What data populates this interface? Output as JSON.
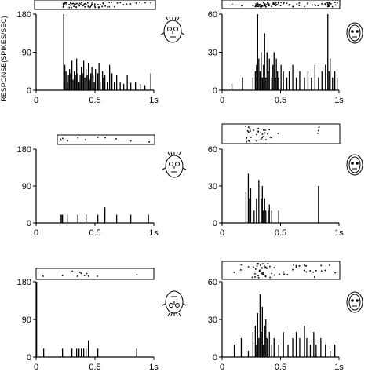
{
  "figure": {
    "ylabel": "RESPONSE(SPIKES/SEC)"
  },
  "chart_data": [
    {
      "type": "bar",
      "panel": "left-top",
      "face_icon": "face-front-sketch-icon",
      "ylim": [
        0,
        180
      ],
      "yticks": [
        "180",
        "90",
        "0"
      ],
      "ytick_values": [
        180,
        90,
        0
      ],
      "xlim": [
        0,
        1
      ],
      "xticks": [
        "0",
        "0.5",
        "1s"
      ],
      "xtick_values": [
        0,
        0.5,
        1
      ],
      "bin_width": 0.01,
      "x": [
        0.23,
        0.24,
        0.25,
        0.26,
        0.27,
        0.28,
        0.29,
        0.3,
        0.31,
        0.32,
        0.33,
        0.34,
        0.35,
        0.36,
        0.37,
        0.38,
        0.39,
        0.4,
        0.41,
        0.42,
        0.43,
        0.44,
        0.45,
        0.46,
        0.47,
        0.48,
        0.49,
        0.5,
        0.52,
        0.53,
        0.54,
        0.56,
        0.57,
        0.58,
        0.6,
        0.62,
        0.64,
        0.66,
        0.68,
        0.71,
        0.74,
        0.77,
        0.8,
        0.84,
        0.88,
        0.92,
        0.97
      ],
      "values": [
        180,
        60,
        45,
        20,
        35,
        50,
        40,
        70,
        25,
        45,
        35,
        75,
        40,
        20,
        35,
        55,
        40,
        70,
        30,
        50,
        35,
        65,
        25,
        40,
        55,
        35,
        20,
        50,
        40,
        65,
        20,
        45,
        30,
        35,
        20,
        60,
        40,
        20,
        35,
        20,
        15,
        35,
        18,
        20,
        15,
        12,
        40
      ]
    },
    {
      "type": "bar",
      "panel": "right-top",
      "face_icon": "face-scrambled-oval-icon",
      "ylim": [
        0,
        60
      ],
      "yticks": [
        "60",
        "30",
        "0"
      ],
      "ytick_values": [
        60,
        30,
        0
      ],
      "xlim": [
        0,
        1
      ],
      "xticks": [
        "0",
        "0.5",
        "1s"
      ],
      "xtick_values": [
        0,
        0.5,
        1
      ],
      "bin_width": 0.01,
      "x": [
        0.08,
        0.17,
        0.26,
        0.28,
        0.29,
        0.3,
        0.31,
        0.32,
        0.33,
        0.34,
        0.35,
        0.36,
        0.37,
        0.38,
        0.39,
        0.4,
        0.42,
        0.43,
        0.44,
        0.45,
        0.46,
        0.47,
        0.48,
        0.5,
        0.52,
        0.55,
        0.57,
        0.6,
        0.63,
        0.66,
        0.7,
        0.73,
        0.76,
        0.79,
        0.82,
        0.85,
        0.88,
        0.9,
        0.91,
        0.92,
        0.94,
        0.96,
        0.98
      ],
      "values": [
        5,
        10,
        10,
        15,
        20,
        60,
        25,
        15,
        30,
        10,
        20,
        45,
        10,
        30,
        15,
        25,
        10,
        20,
        30,
        10,
        25,
        15,
        10,
        20,
        15,
        10,
        15,
        20,
        10,
        15,
        10,
        15,
        10,
        20,
        10,
        15,
        20,
        60,
        15,
        25,
        10,
        15,
        10
      ]
    },
    {
      "type": "bar",
      "panel": "left-middle",
      "face_icon": "face-realistic-front-icon",
      "ylim": [
        0,
        180
      ],
      "yticks": [
        "180",
        "90",
        "0"
      ],
      "ytick_values": [
        180,
        90,
        0
      ],
      "xlim": [
        0,
        1
      ],
      "xticks": [
        "0",
        "0.5",
        "1s"
      ],
      "xtick_values": [
        0,
        0.5,
        1
      ],
      "bin_width": 0.01,
      "x": [
        0.2,
        0.21,
        0.22,
        0.26,
        0.35,
        0.42,
        0.52,
        0.58,
        0.68,
        0.8,
        0.95
      ],
      "values": [
        20,
        20,
        20,
        20,
        20,
        20,
        20,
        38,
        20,
        20,
        20
      ]
    },
    {
      "type": "bar",
      "panel": "right-middle",
      "face_icon": "face-scrambled-oval-icon",
      "ylim": [
        0,
        60
      ],
      "yticks": [
        "60",
        "30",
        "0"
      ],
      "ytick_values": [
        60,
        30,
        0
      ],
      "xlim": [
        0,
        1
      ],
      "xticks": [
        "0",
        "0.5",
        "1s"
      ],
      "xtick_values": [
        0,
        0.5,
        1
      ],
      "bin_width": 0.01,
      "x": [
        0.2,
        0.22,
        0.23,
        0.24,
        0.27,
        0.29,
        0.31,
        0.33,
        0.34,
        0.35,
        0.36,
        0.37,
        0.39,
        0.4,
        0.42,
        0.48,
        0.82
      ],
      "values": [
        25,
        40,
        20,
        28,
        10,
        20,
        35,
        20,
        30,
        10,
        20,
        10,
        10,
        15,
        10,
        10,
        30
      ]
    },
    {
      "type": "bar",
      "panel": "left-bottom",
      "face_icon": "face-inverted-sketch-icon",
      "ylim": [
        0,
        180
      ],
      "yticks": [
        "180",
        "90",
        "0"
      ],
      "ytick_values": [
        180,
        90,
        0
      ],
      "xlim": [
        0,
        1
      ],
      "xticks": [
        "0",
        "0.5",
        "1s"
      ],
      "xtick_values": [
        0,
        0.5,
        1
      ],
      "bin_width": 0.01,
      "x": [
        0.0,
        0.06,
        0.22,
        0.3,
        0.34,
        0.36,
        0.38,
        0.4,
        0.42,
        0.44,
        0.52,
        0.85
      ],
      "values": [
        180,
        20,
        20,
        20,
        20,
        20,
        20,
        20,
        20,
        40,
        20,
        20
      ]
    },
    {
      "type": "bar",
      "panel": "right-bottom",
      "face_icon": "face-scrambled-oval-icon",
      "ylim": [
        0,
        60
      ],
      "yticks": [
        "60",
        "30",
        "0"
      ],
      "ytick_values": [
        60,
        30,
        0
      ],
      "xlim": [
        0,
        1
      ],
      "xticks": [
        "0",
        "0.5",
        "1s"
      ],
      "xtick_values": [
        0,
        0.5,
        1
      ],
      "bin_width": 0.01,
      "x": [
        0.1,
        0.16,
        0.22,
        0.26,
        0.28,
        0.29,
        0.3,
        0.31,
        0.32,
        0.33,
        0.34,
        0.35,
        0.36,
        0.37,
        0.38,
        0.4,
        0.42,
        0.44,
        0.48,
        0.52,
        0.56,
        0.6,
        0.63,
        0.66,
        0.7,
        0.72,
        0.75,
        0.78,
        0.8,
        0.84,
        0.88,
        0.92,
        0.96
      ],
      "values": [
        10,
        15,
        5,
        20,
        25,
        10,
        35,
        15,
        50,
        20,
        40,
        10,
        25,
        30,
        15,
        20,
        10,
        15,
        10,
        20,
        10,
        15,
        20,
        15,
        25,
        15,
        10,
        20,
        10,
        15,
        10,
        5,
        10
      ]
    }
  ]
}
